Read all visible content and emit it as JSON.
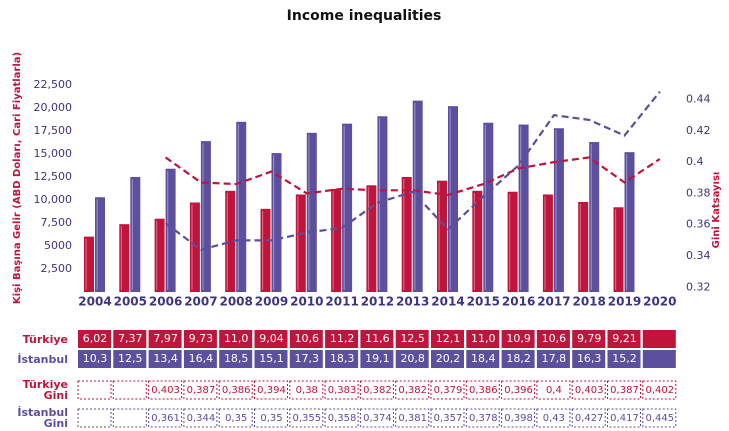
{
  "chart_data": {
    "type": "bar",
    "title": "Income inequalities",
    "y_label": "Kişi Başına Gelir  (ABD Doları, Cari Fiyatlarla)",
    "y2_label": "Gini Katsayısı",
    "categories": [
      "2004",
      "2005",
      "2006",
      "2007",
      "2008",
      "2009",
      "2010",
      "2011",
      "2012",
      "2013",
      "2014",
      "2015",
      "2016",
      "2017",
      "2018",
      "2019",
      "2020"
    ],
    "ylim": [
      0,
      25000
    ],
    "yticks": [
      {
        "value": 2500,
        "label": "2,500"
      },
      {
        "value": 5000,
        "label": "5000"
      },
      {
        "value": 7500,
        "label": "7,500"
      },
      {
        "value": 10000,
        "label": "10,000"
      },
      {
        "value": 12500,
        "label": "12,500"
      },
      {
        "value": 15000,
        "label": "15,000"
      },
      {
        "value": 17500,
        "label": "17,500"
      },
      {
        "value": 20000,
        "label": "20,000"
      },
      {
        "value": 22500,
        "label": "22,500"
      }
    ],
    "y2lim": [
      0.317,
      0.464
    ],
    "y2ticks": [
      0.32,
      0.34,
      0.36,
      0.38,
      0.4,
      0.42,
      0.44
    ],
    "series": [
      {
        "name": "Türkiye",
        "color": "#c0143c",
        "type": "bar",
        "values": [
          6020,
          7370,
          7970,
          9730,
          11000,
          9040,
          10600,
          11200,
          11600,
          12500,
          12100,
          11000,
          10900,
          10600,
          9790,
          9210,
          null
        ],
        "value_labels": [
          "6,02",
          "7,37",
          "7,97",
          "9,73",
          "11,0",
          "9,04",
          "10,6",
          "11,2",
          "11,6",
          "12,5",
          "12,1",
          "11,0",
          "10,9",
          "10,6",
          "9,79",
          "9,21",
          null
        ]
      },
      {
        "name": "İstanbul",
        "color": "#5b4f9e",
        "type": "bar",
        "values": [
          10300,
          12500,
          13400,
          16400,
          18500,
          15100,
          17300,
          18300,
          19100,
          20800,
          20200,
          18400,
          18200,
          17800,
          16300,
          15200,
          null
        ],
        "value_labels": [
          "10,3",
          "12,5",
          "13,4",
          "16,4",
          "18,5",
          "15,1",
          "17,3",
          "18,3",
          "19,1",
          "20,8",
          "20,2",
          "18,4",
          "18,2",
          "17,8",
          "16,3",
          "15,2",
          null
        ]
      },
      {
        "name": "Türkiye Gini",
        "color": "#c0143c",
        "type": "line",
        "axis": "y2",
        "values": [
          null,
          null,
          0.403,
          0.387,
          0.386,
          0.394,
          0.38,
          0.383,
          0.382,
          0.382,
          0.379,
          0.386,
          0.396,
          0.4,
          0.403,
          0.387,
          0.402
        ],
        "value_labels": [
          null,
          null,
          "0,403",
          "0,387",
          "0,386",
          "0,394",
          "0,38",
          "0,383",
          "0,382",
          "0,382",
          "0,379",
          "0,386",
          "0,396",
          "0,4",
          "0,403",
          "0,387",
          "0,402"
        ]
      },
      {
        "name": "İstanbul Gini",
        "color": "#5b4f9e",
        "type": "line",
        "axis": "y2",
        "values": [
          null,
          null,
          0.361,
          0.344,
          0.35,
          0.35,
          0.355,
          0.358,
          0.374,
          0.381,
          0.357,
          0.378,
          0.398,
          0.43,
          0.427,
          0.417,
          0.445
        ],
        "value_labels": [
          null,
          null,
          "0,361",
          "0,344",
          "0,35",
          "0,35",
          "0,355",
          "0,358",
          "0,374",
          "0,381",
          "0,357",
          "0,378",
          "0,398",
          "0,43",
          "0,427",
          "0,417",
          "0,445"
        ]
      }
    ]
  }
}
